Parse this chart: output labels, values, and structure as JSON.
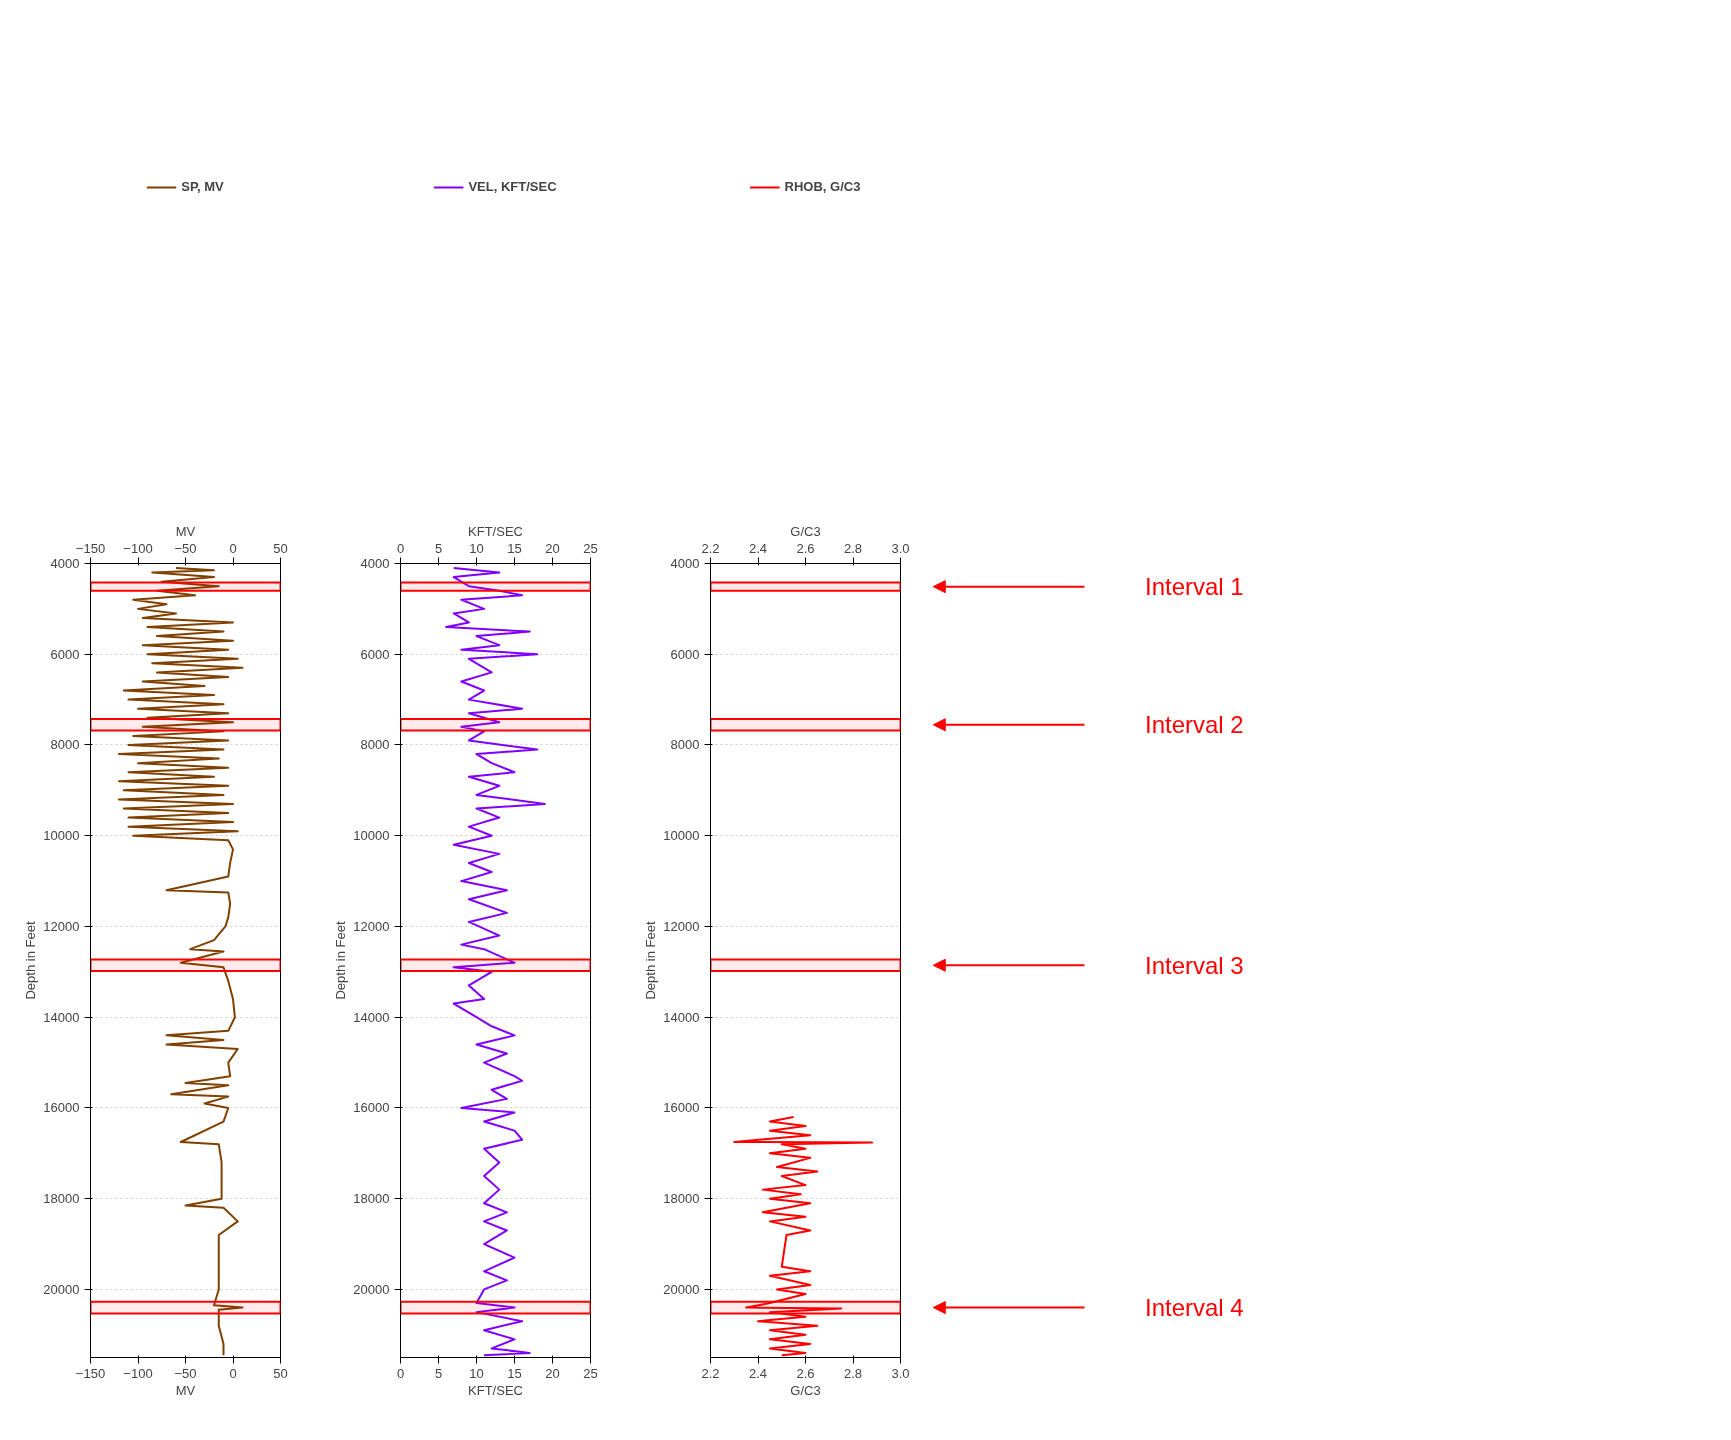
{
  "chart_data": [
    {
      "type": "line",
      "xlabel": "MV",
      "x2label": "MV",
      "ylabel": "Depth in Feet",
      "legend": "top",
      "grid": "y",
      "line_style": "solid",
      "xlim": [
        -150,
        50
      ],
      "xticks": [
        -150,
        -100,
        -50,
        0,
        50
      ],
      "x2lim": [
        -150,
        50
      ],
      "x2ticks": [
        -150,
        -100,
        -50,
        0,
        50
      ],
      "ylim": [
        21500,
        4000
      ],
      "yticks": [
        4000,
        6000,
        8000,
        10000,
        12000,
        14000,
        16000,
        18000,
        20000
      ],
      "series": [
        {
          "name": "SP, MV",
          "color": "#804000",
          "x": [
            -60,
            -20,
            -85,
            -20,
            -75,
            -15,
            -80,
            -40,
            -105,
            -70,
            -100,
            -60,
            -95,
            0,
            -90,
            -10,
            -80,
            0,
            -95,
            -5,
            -90,
            5,
            -85,
            10,
            -80,
            -5,
            -95,
            -30,
            -115,
            -20,
            -110,
            -10,
            -100,
            -5,
            -90,
            0,
            -95,
            -10,
            -105,
            -5,
            -110,
            -10,
            -120,
            -15,
            -100,
            -5,
            -110,
            -20,
            -120,
            -5,
            -115,
            -10,
            -120,
            0,
            -115,
            -5,
            -110,
            0,
            -110,
            5,
            -105,
            -5,
            0,
            -3,
            -5,
            -70,
            -5,
            -3,
            -5,
            -8,
            -20,
            -45,
            -10,
            -55,
            -10,
            -5,
            0,
            2,
            -5,
            -70,
            -10,
            -70,
            5,
            -5,
            -3,
            -50,
            -5,
            -65,
            -5,
            -30,
            -5,
            -10,
            -55,
            -15,
            -12,
            -12,
            -12,
            -50,
            -10,
            5,
            -15,
            -15,
            -15,
            -15,
            -20,
            10,
            -15,
            -15,
            -10,
            -10
          ],
          "values": [
            4100,
            4150,
            4200,
            4300,
            4400,
            4500,
            4600,
            4700,
            4800,
            4900,
            5000,
            5100,
            5200,
            5300,
            5400,
            5500,
            5600,
            5700,
            5800,
            5900,
            6000,
            6100,
            6200,
            6300,
            6400,
            6500,
            6600,
            6700,
            6800,
            6900,
            7000,
            7100,
            7200,
            7300,
            7400,
            7500,
            7600,
            7700,
            7800,
            7900,
            8000,
            8100,
            8200,
            8300,
            8400,
            8500,
            8600,
            8700,
            8800,
            8900,
            9000,
            9100,
            9200,
            9300,
            9400,
            9500,
            9600,
            9700,
            9800,
            9900,
            10000,
            10100,
            10300,
            10600,
            10900,
            11200,
            11250,
            11500,
            11800,
            12000,
            12300,
            12500,
            12550,
            12800,
            12900,
            13200,
            13600,
            14000,
            14300,
            14400,
            14500,
            14600,
            14700,
            15000,
            15300,
            15450,
            15500,
            15700,
            15750,
            15900,
            16000,
            16300,
            16750,
            16800,
            17200,
            17600,
            18000,
            18150,
            18200,
            18500,
            18800,
            19000,
            19500,
            20000,
            20350,
            20400,
            20450,
            20800,
            21200,
            21450
          ]
        }
      ],
      "bands": [
        {
          "axis": "y",
          "from": 4420,
          "to": 4600,
          "color": "#ff0000"
        },
        {
          "axis": "y",
          "from": 7430,
          "to": 7680,
          "color": "#ff0000"
        },
        {
          "axis": "y",
          "from": 12730,
          "to": 12980,
          "color": "#ff0000"
        },
        {
          "axis": "y",
          "from": 20270,
          "to": 20530,
          "color": "#ff0000"
        }
      ]
    },
    {
      "type": "line",
      "xlabel": "KFT/SEC",
      "x2label": "KFT/SEC",
      "ylabel": "Depth in Feet",
      "legend": "top",
      "grid": "y",
      "line_style": "solid",
      "xlim": [
        0,
        25
      ],
      "xticks": [
        0,
        5,
        10,
        15,
        20,
        25
      ],
      "x2lim": [
        0,
        25
      ],
      "x2ticks": [
        0,
        5,
        10,
        15,
        20,
        25
      ],
      "ylim": [
        21500,
        4000
      ],
      "yticks": [
        4000,
        6000,
        8000,
        10000,
        12000,
        14000,
        16000,
        18000,
        20000
      ],
      "series": [
        {
          "name": "VEL, KFT/SEC",
          "color": "#8000ff",
          "x": [
            7,
            13,
            7,
            9,
            13,
            16,
            8,
            11,
            7,
            9,
            6,
            17,
            10,
            13,
            8,
            18,
            9,
            12,
            8,
            11,
            9,
            16,
            9,
            13,
            8,
            11,
            9,
            18,
            10,
            12,
            15,
            9,
            13,
            10,
            19,
            10,
            13,
            9,
            12,
            7,
            13,
            9,
            12,
            8,
            14,
            9,
            14,
            9,
            13,
            8,
            11,
            15,
            7,
            12,
            9,
            11,
            7,
            10,
            12,
            15,
            10,
            14,
            11,
            15,
            16,
            12,
            14,
            8,
            15,
            11,
            15,
            16,
            11,
            13,
            11,
            13,
            11,
            14,
            11,
            14,
            11,
            15,
            11,
            14,
            11,
            10,
            15,
            10,
            16,
            11,
            15,
            12,
            17,
            11
          ],
          "values": [
            4100,
            4200,
            4300,
            4500,
            4600,
            4700,
            4800,
            5000,
            5100,
            5300,
            5400,
            5500,
            5600,
            5800,
            5900,
            6000,
            6100,
            6400,
            6600,
            6800,
            7000,
            7200,
            7300,
            7500,
            7600,
            7700,
            7900,
            8100,
            8200,
            8400,
            8600,
            8700,
            8900,
            9100,
            9300,
            9400,
            9600,
            9800,
            10000,
            10200,
            10400,
            10600,
            10800,
            11000,
            11200,
            11400,
            11700,
            11900,
            12200,
            12400,
            12500,
            12800,
            12900,
            13000,
            13300,
            13600,
            13700,
            14000,
            14200,
            14400,
            14600,
            14800,
            15000,
            15300,
            15400,
            15600,
            15800,
            16000,
            16100,
            16300,
            16500,
            16700,
            16900,
            17200,
            17500,
            17800,
            18100,
            18300,
            18500,
            18700,
            19000,
            19300,
            19600,
            19800,
            20000,
            20300,
            20400,
            20500,
            20700,
            20900,
            21100,
            21300,
            21400,
            21450
          ]
        }
      ],
      "bands": [
        {
          "axis": "y",
          "from": 4420,
          "to": 4600,
          "color": "#ff0000"
        },
        {
          "axis": "y",
          "from": 7430,
          "to": 7680,
          "color": "#ff0000"
        },
        {
          "axis": "y",
          "from": 12730,
          "to": 12980,
          "color": "#ff0000"
        },
        {
          "axis": "y",
          "from": 20270,
          "to": 20530,
          "color": "#ff0000"
        }
      ]
    },
    {
      "type": "line",
      "xlabel": "G/C3",
      "x2label": "G/C3",
      "ylabel": "Depth in Feet",
      "legend": "top",
      "grid": "y",
      "line_style": "solid",
      "xlim": [
        2.2,
        3.0
      ],
      "xticks": [
        2.2,
        2.4,
        2.6,
        2.8,
        {
          "value": 3.0,
          "label": "3.0"
        }
      ],
      "x2lim": [
        2.2,
        3.0
      ],
      "x2ticks": [
        2.2,
        2.4,
        2.6,
        2.8,
        {
          "value": 3.0,
          "label": "3.0"
        }
      ],
      "ylim": [
        21500,
        4000
      ],
      "yticks": [
        4000,
        6000,
        8000,
        10000,
        12000,
        14000,
        16000,
        18000,
        20000
      ],
      "series": [
        {
          "name": "RHOB, G/C3",
          "color": "#ff0000",
          "x": [
            2.55,
            2.45,
            2.6,
            2.45,
            2.62,
            2.3,
            2.88,
            2.5,
            2.6,
            2.45,
            2.62,
            2.48,
            2.65,
            2.5,
            2.6,
            2.42,
            2.58,
            2.45,
            2.62,
            2.42,
            2.6,
            2.45,
            2.62,
            2.52,
            2.5,
            2.62,
            2.45,
            2.62,
            2.48,
            2.6,
            2.45,
            2.35,
            2.75,
            2.45,
            2.6,
            2.4,
            2.65,
            2.45,
            2.6,
            2.45,
            2.62,
            2.45,
            2.6,
            2.5
          ],
          "values": [
            16200,
            16300,
            16400,
            16500,
            16600,
            16750,
            16760,
            16800,
            16900,
            17000,
            17100,
            17300,
            17400,
            17500,
            17700,
            17800,
            17900,
            18000,
            18100,
            18300,
            18400,
            18500,
            18700,
            18800,
            19500,
            19600,
            19700,
            19900,
            20000,
            20100,
            20300,
            20400,
            20420,
            20500,
            20600,
            20700,
            20800,
            20900,
            21000,
            21100,
            21200,
            21300,
            21400,
            21450
          ]
        }
      ],
      "bands": [
        {
          "axis": "y",
          "from": 4420,
          "to": 4600,
          "color": "#ff0000",
          "label": "Interval 1"
        },
        {
          "axis": "y",
          "from": 7430,
          "to": 7680,
          "color": "#ff0000",
          "label": "Interval 2"
        },
        {
          "axis": "y",
          "from": 12730,
          "to": 12980,
          "color": "#ff0000",
          "label": "Interval 3"
        },
        {
          "axis": "y",
          "from": 20270,
          "to": 20530,
          "color": "#ff0000",
          "label": "Interval 4"
        }
      ]
    }
  ]
}
